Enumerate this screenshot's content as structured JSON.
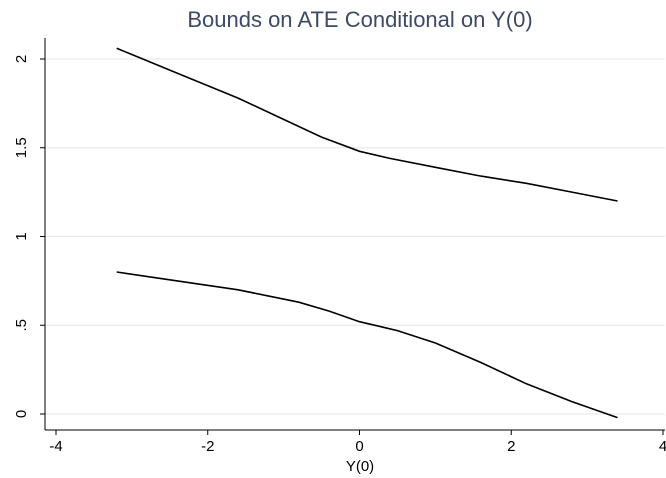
{
  "chart_data": {
    "type": "line",
    "title": "Bounds on ATE Conditional on Y(0)",
    "xlabel": "Y(0)",
    "ylabel": "",
    "xlim": [
      -4,
      4
    ],
    "ylim": [
      0,
      2.1
    ],
    "xticks": [
      {
        "value": -4,
        "label": "-4"
      },
      {
        "value": -2,
        "label": "-2"
      },
      {
        "value": 0,
        "label": "0"
      },
      {
        "value": 2,
        "label": "2"
      },
      {
        "value": 4,
        "label": "4"
      }
    ],
    "yticks": [
      {
        "value": 0,
        "label": "0"
      },
      {
        "value": 0.5,
        "label": ".5"
      },
      {
        "value": 1,
        "label": "1"
      },
      {
        "value": 1.5,
        "label": "1.5"
      },
      {
        "value": 2,
        "label": "2"
      }
    ],
    "grid": true,
    "legend": "none",
    "series": [
      {
        "color": "#000000",
        "points": [
          [
            -3.2,
            2.06
          ],
          [
            -2.4,
            1.92
          ],
          [
            -1.6,
            1.78
          ],
          [
            -1.0,
            1.66
          ],
          [
            -0.5,
            1.56
          ],
          [
            0.0,
            1.48
          ],
          [
            0.4,
            1.44
          ],
          [
            1.0,
            1.39
          ],
          [
            1.6,
            1.34
          ],
          [
            2.2,
            1.3
          ],
          [
            2.8,
            1.25
          ],
          [
            3.4,
            1.2
          ]
        ]
      },
      {
        "color": "#000000",
        "points": [
          [
            -3.2,
            0.8
          ],
          [
            -2.4,
            0.75
          ],
          [
            -1.6,
            0.7
          ],
          [
            -0.8,
            0.63
          ],
          [
            -0.4,
            0.58
          ],
          [
            0.0,
            0.52
          ],
          [
            0.5,
            0.47
          ],
          [
            1.0,
            0.4
          ],
          [
            1.6,
            0.29
          ],
          [
            2.2,
            0.17
          ],
          [
            2.8,
            0.07
          ],
          [
            3.4,
            -0.02
          ]
        ]
      }
    ]
  }
}
